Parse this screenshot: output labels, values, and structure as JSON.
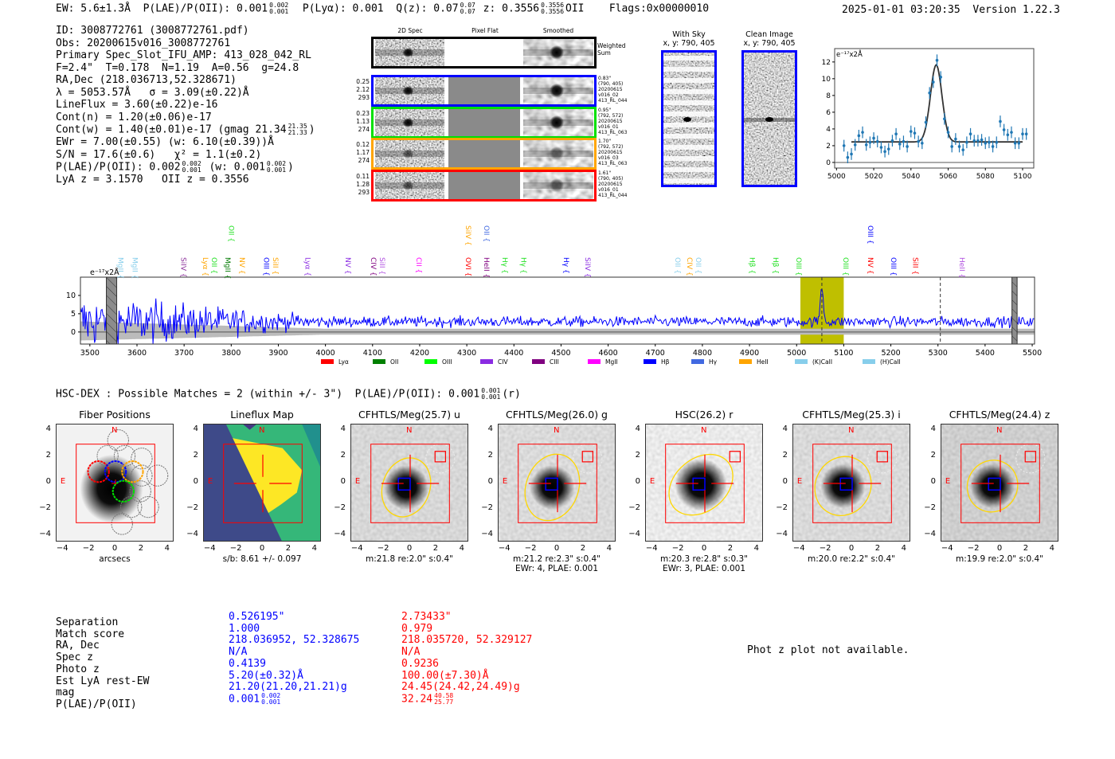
{
  "header": {
    "ew": "EW: 5.6±1.3Å",
    "plae": "P(LAE)/P(OII): 0.001",
    "plae_hi": "0.002",
    "plae_lo": "0.001",
    "plya": "P(Lyα): 0.001",
    "qz": "Q(z): 0.07",
    "qz_hi": "0.07",
    "qz_lo": "0.07",
    "z": "z: 0.3556",
    "z_hi": "0.3556",
    "z_lo": "0.3556",
    "z_type": "OII",
    "flags": "Flags:0x00000010",
    "timestamp": "2025-01-01 03:20:35",
    "version": "Version 1.22.3"
  },
  "info": {
    "id": "ID: 3008772761 (3008772761.pdf)",
    "obs": "Obs: 20200615v016_3008772761",
    "primary": "Primary Spec_Slot_IFU_AMP: 413_028_042_RL",
    "params": "F=2.4\"  T=0.178  N=1.19  A=0.56  g=24.8",
    "radec": "RA,Dec (218.036713,52.328671)",
    "lambda": "λ = 5053.57Å   σ = 3.09(±0.22)Å",
    "lineflux": "LineFlux = 3.60(±0.22)e-16",
    "contn": "Cont(n) = 1.20(±0.06)e-17",
    "contw": "Cont(w) = 1.40(±0.01)e-17 (gmag 21.34",
    "contw_hi": "21.35",
    "contw_lo": "21.33",
    "contw_end": ")",
    "ewr": "EWr = 7.00(±0.55) (w: 6.10(±0.39))Å",
    "sn": "S/N = 17.6(±0.6)   χ² = 1.1(±0.2)",
    "plae": "P(LAE)/P(OII): 0.002",
    "plae_hi": "0.002",
    "plae_lo": "0.001",
    "plae_w": "(w: 0.001",
    "plae_w_hi": "0.002",
    "plae_w_lo": "0.001",
    "plae_w_end": ")",
    "z": "LyA z = 3.1570   OII z = 0.3556"
  },
  "spec2d": {
    "col_headers": [
      "2D Spec",
      "Pixel Flat",
      "Smoothed"
    ],
    "weighted_label": "Weighted Sum",
    "rows": [
      {
        "color": "#0000ff",
        "left": [
          "0.25",
          "2.12",
          "293"
        ],
        "right": [
          "0.83\"",
          "(790, 405)",
          "20200615",
          "v016_02",
          "413_RL_044"
        ]
      },
      {
        "color": "#00e000",
        "left": [
          "0.23",
          "1.13",
          "274"
        ],
        "right": [
          "0.95\"",
          "(792, 572)",
          "20200615",
          "v016_01",
          "413_RL_063"
        ]
      },
      {
        "color": "#ffa500",
        "left": [
          "0.12",
          "1.17",
          "274"
        ],
        "right": [
          "1.70\"",
          "(792, 572)",
          "20200615",
          "v016_03",
          "413_RL_063"
        ]
      },
      {
        "color": "#ff0000",
        "left": [
          "0.11",
          "1.28",
          "293"
        ],
        "right": [
          "1.61\"",
          "(790, 405)",
          "20200615",
          "v016_01",
          "413_RL_044"
        ]
      }
    ]
  },
  "sky": {
    "with_sky_title": "With Sky",
    "with_sky_xy": "x, y: 790, 405",
    "clean_title": "Clean Image",
    "clean_xy": "x, y: 790, 405"
  },
  "chart_data": [
    {
      "type": "scatter",
      "title": "",
      "ylabel": "e⁻¹⁷x2Å",
      "xlim": [
        4999,
        5106
      ],
      "ylim": [
        -0.67,
        13.6
      ],
      "xticks": [
        5000,
        5020,
        5040,
        5060,
        5080,
        5100
      ],
      "yticks": [
        0,
        2,
        4,
        6,
        8,
        10,
        12
      ],
      "points": {
        "x": [
          5004,
          5006,
          5008,
          5010,
          5012,
          5014,
          5016,
          5018,
          5020,
          5022,
          5024,
          5026,
          5028,
          5030,
          5032,
          5034,
          5036,
          5038,
          5040,
          5042,
          5044,
          5046,
          5048,
          5050,
          5052,
          5054,
          5056,
          5058,
          5060,
          5062,
          5064,
          5066,
          5068,
          5070,
          5072,
          5074,
          5076,
          5078,
          5080,
          5082,
          5084,
          5086,
          5088,
          5090,
          5092,
          5094,
          5096,
          5098,
          5100,
          5102
        ],
        "y": [
          2.0,
          0.6,
          1.0,
          2.1,
          3.2,
          3.6,
          2.1,
          2.4,
          2.9,
          2.5,
          1.8,
          1.3,
          1.6,
          2.6,
          3.4,
          2.2,
          2.5,
          1.9,
          3.7,
          3.5,
          2.5,
          2.3,
          4.8,
          8.3,
          9.6,
          12.2,
          10.2,
          5.2,
          3.6,
          1.9,
          2.8,
          1.9,
          1.5,
          2.4,
          3.4,
          2.6,
          2.6,
          2.7,
          2.3,
          2.4,
          1.9,
          2.4,
          4.9,
          3.9,
          3.3,
          3.6,
          2.3,
          2.3,
          3.4,
          3.4
        ],
        "err": 0.7
      },
      "fit": {
        "continuum": 2.45,
        "amplitude": 9.2,
        "center": 5053.57,
        "sigma": 3.09,
        "range": [
          5008,
          5100
        ]
      }
    },
    {
      "type": "line",
      "ylabel": "e⁻¹⁷x2Å",
      "xlim": [
        3480,
        5505
      ],
      "ylim": [
        -3.3,
        15
      ],
      "xticks": [
        3500,
        3600,
        3700,
        3800,
        3900,
        4000,
        4100,
        4200,
        4300,
        4400,
        4500,
        4600,
        4700,
        4800,
        4900,
        5000,
        5100,
        5200,
        5300,
        5400,
        5500
      ],
      "yticks": [
        0,
        5,
        10
      ],
      "series": {
        "name": "spectrum",
        "continuum": 2.8,
        "line_center": 5053.57,
        "line_peak": 9.5,
        "line_sigma": 3.09
      },
      "highlight": [
        5008,
        5100
      ],
      "dashed_lines": [
        5053.57,
        5305
      ],
      "masked": [
        [
          3535,
          3557
        ],
        [
          5457,
          5468
        ]
      ],
      "line_labels": [
        {
          "label": "MgII",
          "wave": 3565,
          "color": "#87ceeb",
          "row": 0
        },
        {
          "label": "MgII",
          "wave": 3596,
          "color": "#87ceeb",
          "row": 0
        },
        {
          "label": "SiIV",
          "wave": 3699,
          "color": "#8b2f9a",
          "row": 0
        },
        {
          "label": "Lyα",
          "wave": 3745,
          "color": "#ffa500",
          "row": 0
        },
        {
          "label": "OII",
          "wave": 3764,
          "color": "#22e022",
          "row": 0
        },
        {
          "label": "MgII",
          "wave": 3793,
          "color": "#007a00",
          "row": 0
        },
        {
          "label": "OII",
          "wave": 3800,
          "color": "#22e022",
          "row": 1
        },
        {
          "label": "NV",
          "wave": 3823,
          "color": "#ffa500",
          "row": 0
        },
        {
          "label": "OIII",
          "wave": 3875,
          "color": "#0000ff",
          "row": 0
        },
        {
          "label": "SiII",
          "wave": 3894,
          "color": "#ffa500",
          "row": 0
        },
        {
          "label": "Lyα",
          "wave": 3963,
          "color": "#8a2be2",
          "row": 0
        },
        {
          "label": "NV",
          "wave": 4048,
          "color": "#8a2be2",
          "row": 0
        },
        {
          "label": "CIV",
          "wave": 4102,
          "color": "#800080",
          "row": 0
        },
        {
          "label": "SiII",
          "wave": 4121,
          "color": "#b050e0",
          "row": 0
        },
        {
          "label": "CII",
          "wave": 4198,
          "color": "#ff00ff",
          "row": 0
        },
        {
          "label": "OVI",
          "wave": 4303,
          "color": "#ff0000",
          "row": 0
        },
        {
          "label": "SiIV",
          "wave": 4303,
          "color": "#ffa500",
          "row": 1
        },
        {
          "label": "HeII",
          "wave": 4342,
          "color": "#800080",
          "row": 0
        },
        {
          "label": "OII",
          "wave": 4342,
          "color": "#4169e1",
          "row": 1
        },
        {
          "label": "Hγ",
          "wave": 4381,
          "color": "#22e022",
          "row": 0
        },
        {
          "label": "Hγ",
          "wave": 4421,
          "color": "#22e022",
          "row": 0
        },
        {
          "label": "Hγ",
          "wave": 4511,
          "color": "#0000ff",
          "row": 0
        },
        {
          "label": "SiIV",
          "wave": 4557,
          "color": "#8a2be2",
          "row": 0
        },
        {
          "label": "OII",
          "wave": 4748,
          "color": "#87ceeb",
          "row": 0
        },
        {
          "label": "CIV",
          "wave": 4773,
          "color": "#ffa500",
          "row": 0
        },
        {
          "label": "OII",
          "wave": 4792,
          "color": "#87ceeb",
          "row": 0
        },
        {
          "label": "Hβ",
          "wave": 4906,
          "color": "#22e022",
          "row": 0
        },
        {
          "label": "Hβ",
          "wave": 4956,
          "color": "#22e022",
          "row": 0
        },
        {
          "label": "OIII",
          "wave": 5005,
          "color": "#22e022",
          "row": 0
        },
        {
          "label": "OIII",
          "wave": 5104,
          "color": "#22e022",
          "row": 0
        },
        {
          "label": "NV",
          "wave": 5157,
          "color": "#ff0000",
          "row": 0
        },
        {
          "label": "OIII",
          "wave": 5157,
          "color": "#0000ff",
          "row": 1
        },
        {
          "label": "OIII",
          "wave": 5206,
          "color": "#0000ff",
          "row": 0
        },
        {
          "label": "SiII",
          "wave": 5252,
          "color": "#ff0000",
          "row": 0
        },
        {
          "label": "HeII",
          "wave": 5351,
          "color": "#b050e0",
          "row": 0
        }
      ],
      "legend": [
        {
          "label": "Lyα",
          "color": "#ff0000"
        },
        {
          "label": "OII",
          "color": "#008000"
        },
        {
          "label": "OIII",
          "color": "#00ff00"
        },
        {
          "label": "CIV",
          "color": "#8a2be2"
        },
        {
          "label": "CIII",
          "color": "#800080"
        },
        {
          "label": "MgII",
          "color": "#ff00ff"
        },
        {
          "label": "Hβ",
          "color": "#0000ff"
        },
        {
          "label": "Hγ",
          "color": "#4169e1"
        },
        {
          "label": "HeII",
          "color": "#ffa500"
        },
        {
          "label": "(K)CaII",
          "color": "#87ceeb"
        },
        {
          "label": "(H)CaII",
          "color": "#87ceeb"
        }
      ],
      "legend_position": "bottom"
    }
  ],
  "matches": {
    "title": "HSC-DEX : Possible Matches = 2 (within +/- 3\")  P(LAE)/P(OII): 0.001",
    "title_hi": "0.001",
    "title_lo": "0.001",
    "title_end": "(r)",
    "ticks": [
      "4",
      "2",
      "0",
      "−2",
      "−4"
    ],
    "xticks": [
      "−4",
      "−2",
      "0",
      "2",
      "4"
    ],
    "panels": [
      {
        "title": "Fiber Positions",
        "captions": [
          "arcsecs"
        ]
      },
      {
        "title": "Lineflux Map",
        "captions": [
          "s/b: 8.61 +/- 0.097"
        ]
      },
      {
        "title": "CFHTLS/Meg(25.7) u",
        "captions": [
          "m:21.8  re:2.0\"  s:0.4\""
        ]
      },
      {
        "title": "CFHTLS/Meg(26.0) g",
        "captions": [
          "m:21.2  re:2.3\"  s:0.4\"",
          "EWr: 4, PLAE: 0.001"
        ]
      },
      {
        "title": "HSC(26.2) r",
        "captions": [
          "m:20.3  re:2.8\"  s:0.3\"",
          "EWr: 3, PLAE: 0.001"
        ]
      },
      {
        "title": "CFHTLS/Meg(25.3) i",
        "captions": [
          "m:20.0  re:2.2\"  s:0.4\""
        ]
      },
      {
        "title": "CFHTLS/Meg(24.4) z",
        "captions": [
          "m:19.9  re:2.0\"  s:0.4\""
        ]
      }
    ],
    "north": "N",
    "east": "E"
  },
  "table": {
    "labels": [
      "Separation",
      "Match score",
      "RA, Dec",
      "Spec z",
      "Photo z",
      "Est LyA rest-EW",
      "mag",
      "P(LAE)/P(OII)"
    ],
    "match1": {
      "color": "#0000ff",
      "values": [
        "0.526195\"",
        "1.000",
        "218.036952, 52.328675",
        "N/A",
        "0.4139",
        "5.20(±0.32)Å",
        "21.20(21.20,21.21)g",
        "0.001"
      ],
      "plae_hi": "0.002",
      "plae_lo": "0.001"
    },
    "match2": {
      "color": "#ff0000",
      "values": [
        "2.73433\"",
        "0.979",
        "218.035720, 52.329127",
        "N/A",
        "0.9236",
        "100.00(±7.30)Å",
        "24.45(24.42,24.49)g",
        "32.24"
      ],
      "plae_hi": "40.58",
      "plae_lo": "25.77"
    },
    "photz_note": "Phot z plot not available."
  }
}
